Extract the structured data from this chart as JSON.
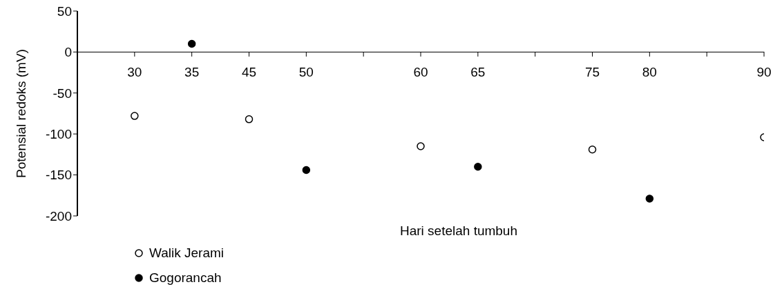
{
  "chart_data": {
    "type": "scatter",
    "xlabel": "Hari setelah tumbuh",
    "ylabel": "Potensial redoks (mV)",
    "categories": [
      null,
      "30",
      "35",
      "45",
      "50",
      null,
      "60",
      "65",
      null,
      "75",
      "80",
      null,
      "90"
    ],
    "series": [
      {
        "name": "Walik Jerami",
        "color": "#ffffff",
        "values": [
          null,
          -78,
          null,
          -82,
          null,
          null,
          -115,
          null,
          null,
          -119,
          null,
          null,
          -104
        ]
      },
      {
        "name": "Gogorancah",
        "color": "#000000",
        "values": [
          null,
          null,
          10,
          null,
          -144,
          null,
          null,
          -140,
          null,
          null,
          -179,
          null,
          null
        ]
      }
    ],
    "ylim": [
      -200,
      50
    ],
    "yticks": [
      -200,
      -150,
      -100,
      -50,
      0,
      50
    ],
    "legend": "bottom left",
    "marker": "circle"
  }
}
